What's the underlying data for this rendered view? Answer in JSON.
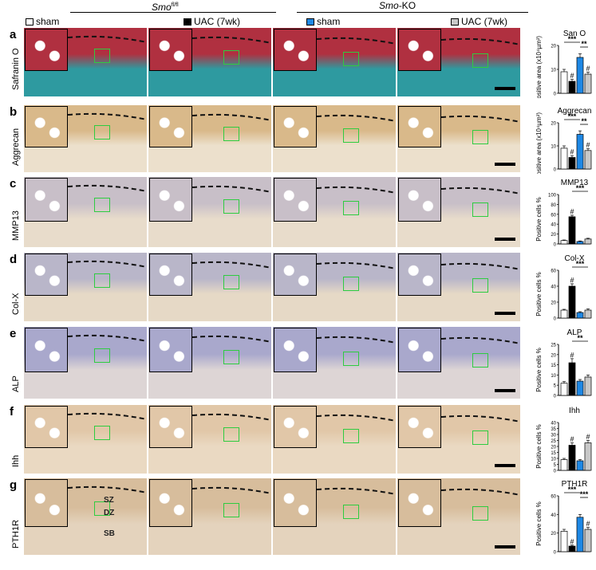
{
  "header": {
    "group1": "Smo",
    "group1_sup": "fl/fl",
    "group2_prefix": "Smo",
    "group2_suffix": "-KO",
    "legend": [
      {
        "label": "sham",
        "color": "#ffffff"
      },
      {
        "label": "UAC (7wk)",
        "color": "#000000"
      },
      {
        "label": "sham",
        "color": "#1e88e5"
      },
      {
        "label": "UAC (7wk)",
        "color": "#c8c8c8"
      }
    ]
  },
  "zone_labels": {
    "sz": "SZ",
    "dz": "DZ",
    "sb": "SB"
  },
  "panels": [
    {
      "letter": "a",
      "stain": "Safranin O",
      "tint": "#b03040",
      "bg": "#2e9aa0"
    },
    {
      "letter": "b",
      "stain": "Aggrecan",
      "tint": "#d9b98a",
      "bg": "#ece0cc"
    },
    {
      "letter": "c",
      "stain": "MMP13",
      "tint": "#c8bfc8",
      "bg": "#e8dccb"
    },
    {
      "letter": "d",
      "stain": "Col-X",
      "tint": "#b9b6c9",
      "bg": "#e6d9c6"
    },
    {
      "letter": "e",
      "stain": "ALP",
      "tint": "#a9a8cc",
      "bg": "#ddd5d5"
    },
    {
      "letter": "f",
      "stain": "Ihh",
      "tint": "#e1c7a8",
      "bg": "#ead9c2"
    },
    {
      "letter": "g",
      "stain": "PTH1R",
      "tint": "#d7bd9c",
      "bg": "#e4d3bd"
    }
  ],
  "chart_data": [
    {
      "type": "bar",
      "title": "San O",
      "ylabel": "Positive area (x10⁴µm²)",
      "ylim": [
        0,
        20
      ],
      "ticks": [
        "0",
        "10",
        "20"
      ],
      "values": [
        9,
        5,
        15,
        8
      ],
      "errors": [
        1,
        0.8,
        1.5,
        0.8
      ],
      "hash": [
        false,
        true,
        false,
        true
      ],
      "sig": [
        {
          "label": "***",
          "from": 0,
          "to": 2
        },
        {
          "label": "**",
          "from": 2,
          "to": 3
        }
      ]
    },
    {
      "type": "bar",
      "title": "Aggrecan",
      "ylabel": "Positive area (x10⁴µm²)",
      "ylim": [
        0,
        20
      ],
      "ticks": [
        "0",
        "10",
        "20"
      ],
      "values": [
        9,
        5,
        15,
        8
      ],
      "errors": [
        1,
        0.8,
        1.5,
        0.8
      ],
      "hash": [
        false,
        true,
        false,
        true
      ],
      "sig": [
        {
          "label": "***",
          "from": 0,
          "to": 2
        },
        {
          "label": "**",
          "from": 2,
          "to": 3
        }
      ]
    },
    {
      "type": "bar",
      "title": "MMP13",
      "ylabel": "Positive cells %",
      "ylim": [
        0,
        100
      ],
      "ticks": [
        "0",
        "20",
        "40",
        "60",
        "80",
        "100"
      ],
      "values": [
        7,
        55,
        5,
        10
      ],
      "errors": [
        1,
        3,
        1,
        1.5
      ],
      "hash": [
        false,
        true,
        false,
        false
      ],
      "sig": [
        {
          "label": "***",
          "from": 1,
          "to": 3
        }
      ]
    },
    {
      "type": "bar",
      "title": "Col-X",
      "ylabel": "Positive cells %",
      "ylim": [
        0,
        60
      ],
      "ticks": [
        "0",
        "20",
        "40",
        "60"
      ],
      "values": [
        10,
        40,
        7,
        10
      ],
      "errors": [
        1,
        3,
        1,
        1.5
      ],
      "hash": [
        false,
        true,
        false,
        false
      ],
      "sig": [
        {
          "label": "***",
          "from": 1,
          "to": 3
        }
      ]
    },
    {
      "type": "bar",
      "title": "ALP",
      "ylabel": "Positive cells %",
      "ylim": [
        0,
        25
      ],
      "ticks": [
        "0",
        "5",
        "10",
        "15",
        "20",
        "25"
      ],
      "values": [
        6,
        16,
        7,
        9
      ],
      "errors": [
        0.8,
        2,
        0.8,
        1
      ],
      "hash": [
        false,
        true,
        false,
        false
      ],
      "sig": [
        {
          "label": "**",
          "from": 1,
          "to": 3
        }
      ]
    },
    {
      "type": "bar",
      "title": "Ihh",
      "ylabel": "Positive cells %",
      "ylim": [
        0,
        40
      ],
      "ticks": [
        "0",
        "5",
        "10",
        "15",
        "20",
        "25",
        "30",
        "35",
        "40"
      ],
      "values": [
        9,
        21,
        8,
        23
      ],
      "errors": [
        1,
        2,
        1,
        2
      ],
      "hash": [
        false,
        true,
        false,
        true
      ],
      "sig": []
    },
    {
      "type": "bar",
      "title": "PTH1R",
      "ylabel": "Positive cells %",
      "ylim": [
        0,
        60
      ],
      "ticks": [
        "0",
        "20",
        "40",
        "60"
      ],
      "values": [
        22,
        6,
        37,
        24
      ],
      "errors": [
        2,
        1,
        3,
        2
      ],
      "hash": [
        false,
        true,
        false,
        true
      ],
      "sig": [
        {
          "label": "***",
          "from": 0,
          "to": 2
        },
        {
          "label": "***",
          "from": 2,
          "to": 3
        }
      ]
    }
  ]
}
